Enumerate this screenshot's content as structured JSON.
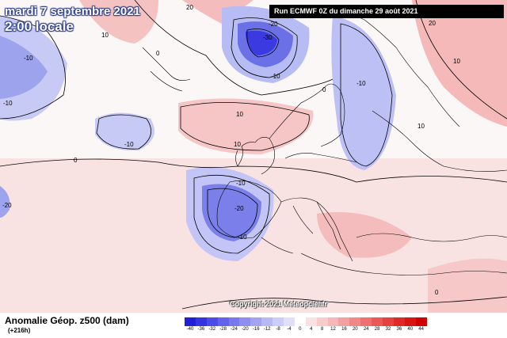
{
  "header": {
    "date": "mardi 7 septembre 2021",
    "time": "2:00 locale",
    "run": "Run ECMWF 0Z du dimanche 29 août 2021"
  },
  "footer": {
    "variable": "Anomalie Géop. z500 (dam)",
    "lead_time": "(+216h)",
    "copyright": "Copyright 2021 Meteopciel.fr"
  },
  "contour_labels": [
    "-30",
    "-20",
    "-20",
    "-10",
    "-10",
    "-10",
    "-10",
    "-10",
    "-10",
    "-10",
    "10",
    "10",
    "10",
    "10",
    "10",
    "20",
    "20",
    "0",
    "0",
    "0",
    "0",
    "-20"
  ],
  "legend": {
    "ticks": [
      "-40",
      "-36",
      "-32",
      "-28",
      "-24",
      "-20",
      "-16",
      "-12",
      "-8",
      "-4",
      "0",
      "4",
      "8",
      "12",
      "16",
      "20",
      "24",
      "28",
      "32",
      "36",
      "40",
      "44"
    ],
    "colors": [
      "#1f1fd8",
      "#3535e0",
      "#4c4ce6",
      "#6262ea",
      "#7878ee",
      "#8e8ef0",
      "#a3a3f2",
      "#b8b8f5",
      "#cccdf8",
      "#e0e0fb",
      "#ffffff",
      "#fbe1e1",
      "#f8cccc",
      "#f5b7b7",
      "#f2a0a0",
      "#f08888",
      "#ee7070",
      "#ea5858",
      "#e64040",
      "#e02828",
      "#d81414",
      "#d00000"
    ]
  },
  "colors": {
    "negative_strong": "#3a3ae0",
    "negative_light": "#c8cbf5",
    "positive_light": "#f8d4d4",
    "positive_strong": "#f0a6a6",
    "land_line": "#000000"
  }
}
